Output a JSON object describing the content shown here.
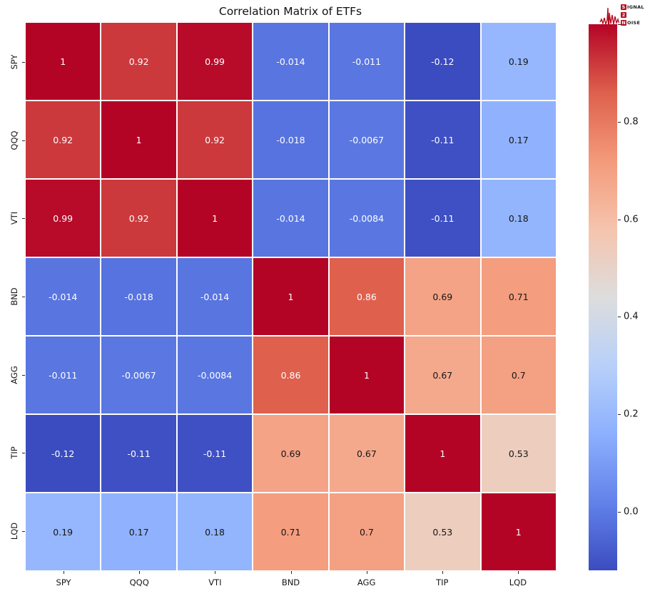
{
  "title": "Correlation Matrix of ETFs",
  "chart_data": {
    "type": "heatmap",
    "title": "Correlation Matrix of ETFs",
    "categories": [
      "SPY",
      "QQQ",
      "VTI",
      "BND",
      "AGG",
      "TIP",
      "LQD"
    ],
    "matrix_display": [
      [
        "1",
        "0.92",
        "0.99",
        "-0.014",
        "-0.011",
        "-0.12",
        "0.19"
      ],
      [
        "0.92",
        "1",
        "0.92",
        "-0.018",
        "-0.0067",
        "-0.11",
        "0.17"
      ],
      [
        "0.99",
        "0.92",
        "1",
        "-0.014",
        "-0.0084",
        "-0.11",
        "0.18"
      ],
      [
        "-0.014",
        "-0.018",
        "-0.014",
        "1",
        "0.86",
        "0.69",
        "0.71"
      ],
      [
        "-0.011",
        "-0.0067",
        "-0.0084",
        "0.86",
        "1",
        "0.67",
        "0.7"
      ],
      [
        "-0.12",
        "-0.11",
        "-0.11",
        "0.69",
        "0.67",
        "1",
        "0.53"
      ],
      [
        "0.19",
        "0.17",
        "0.18",
        "0.71",
        "0.7",
        "0.53",
        "1"
      ]
    ],
    "colormap": "coolwarm",
    "vmin": -0.12,
    "vmax": 1.0,
    "colorbar_ticks": [
      "1.0",
      "0.8",
      "0.6",
      "0.4",
      "0.2",
      "0.0"
    ],
    "cell_gridline_color": "#ffffff",
    "annotation_text_light": "#ffffff",
    "annotation_text_dark": "#161616",
    "legend_position": "right-colorbar",
    "grid": false
  },
  "logo": {
    "name": "Signal 2 Noise",
    "color": "#b60d1f",
    "line1_initial": "S",
    "line1_rest": "IGNAL",
    "line2_initial": "2",
    "line2_rest": "",
    "line3_initial": "N",
    "line3_rest": "OISE"
  }
}
